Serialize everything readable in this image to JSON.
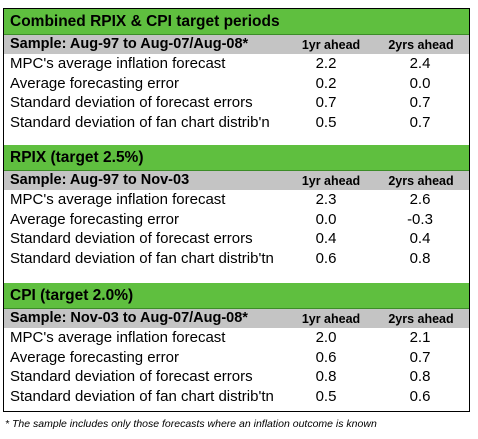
{
  "sections": [
    {
      "title": "Combined RPIX & CPI target periods",
      "sample": "Sample: Aug-97 to Aug-07/Aug-08*",
      "col1": "1yr ahead",
      "col2": "2yrs ahead",
      "rows": [
        {
          "label": "MPC's average inflation forecast",
          "v1": "2.2",
          "v2": "2.4"
        },
        {
          "label": "Average forecasting error",
          "v1": "0.2",
          "v2": "0.0"
        },
        {
          "label": "Standard deviation of forecast errors",
          "v1": "0.7",
          "v2": "0.7"
        },
        {
          "label": "Standard deviation of fan chart distrib'n",
          "v1": "0.5",
          "v2": "0.7"
        }
      ]
    },
    {
      "title": "RPIX (target 2.5%)",
      "sample": "Sample: Aug-97 to Nov-03",
      "col1": "1yr ahead",
      "col2": "2yrs ahead",
      "rows": [
        {
          "label": "MPC's average inflation forecast",
          "v1": "2.3",
          "v2": "2.6"
        },
        {
          "label": "Average forecasting error",
          "v1": "0.0",
          "v2": "-0.3"
        },
        {
          "label": "Standard deviation of forecast errors",
          "v1": "0.4",
          "v2": "0.4"
        },
        {
          "label": "Standard deviation of fan chart distrib'tn",
          "v1": "0.6",
          "v2": "0.8"
        }
      ]
    },
    {
      "title": "CPI (target 2.0%)",
      "sample": "Sample: Nov-03 to Aug-07/Aug-08*",
      "col1": "1yr ahead",
      "col2": "2yrs ahead",
      "rows": [
        {
          "label": "MPC's average inflation forecast",
          "v1": "2.0",
          "v2": "2.1"
        },
        {
          "label": "Average forecasting error",
          "v1": "0.6",
          "v2": "0.7"
        },
        {
          "label": "Standard deviation of forecast errors",
          "v1": "0.8",
          "v2": "0.8"
        },
        {
          "label": "Standard deviation of fan chart distrib'tn",
          "v1": "0.5",
          "v2": "0.6"
        }
      ]
    }
  ],
  "footnote": "* The sample includes only those forecasts where an inflation outcome is known",
  "colors": {
    "section_header": "#5fbf3f",
    "sample_row": "#c4c4c4"
  }
}
